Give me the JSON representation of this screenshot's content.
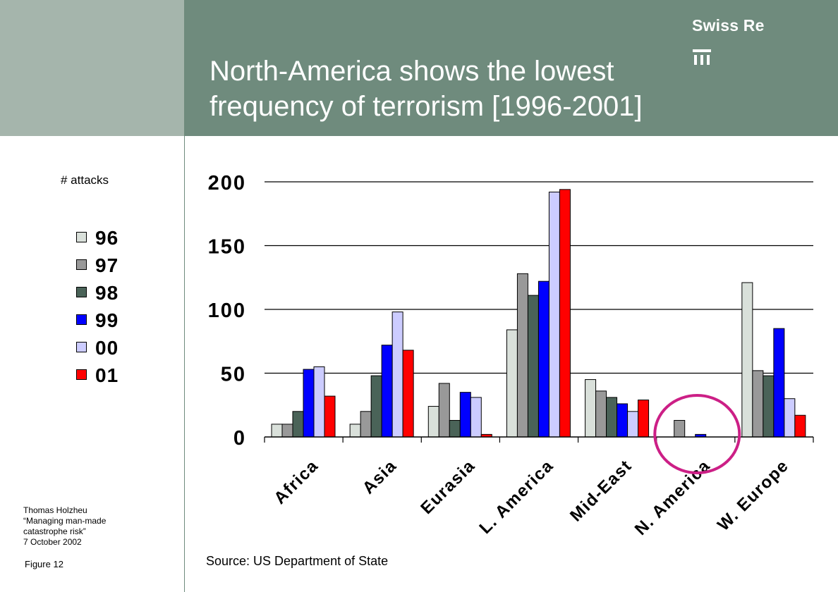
{
  "header": {
    "title_line1": "North-America shows the lowest",
    "title_line2": "frequency of terrorism [1996-2001]",
    "brand": "Swiss Re"
  },
  "left_note": {
    "line1": "Thomas Holzheu",
    "line2": "“Managing man-made",
    "line3": "catastrophe risk”",
    "line4": "7 October 2002"
  },
  "figure_label": "Figure 12",
  "source": "Source: US Department of State",
  "chart_data": {
    "type": "bar",
    "ylabel": "# attacks",
    "ylim": [
      0,
      200
    ],
    "yticks": [
      0,
      50,
      100,
      150,
      200
    ],
    "grid": true,
    "legend_placement": "left",
    "categories": [
      "Africa",
      "Asia",
      "Eurasia",
      "L. America",
      "Mid-East",
      "N. America",
      "W. Europe"
    ],
    "series": [
      {
        "name": "96",
        "color": "#d9e0da",
        "values": [
          10,
          10,
          24,
          84,
          45,
          0,
          121
        ]
      },
      {
        "name": "97",
        "color": "#999999",
        "values": [
          10,
          20,
          42,
          128,
          36,
          13,
          52
        ]
      },
      {
        "name": "98",
        "color": "#4a6358",
        "values": [
          20,
          48,
          13,
          111,
          31,
          0,
          48
        ]
      },
      {
        "name": "99",
        "color": "#0000ff",
        "values": [
          53,
          72,
          35,
          122,
          26,
          2,
          85
        ]
      },
      {
        "name": "00",
        "color": "#ccccff",
        "values": [
          55,
          98,
          31,
          192,
          20,
          0,
          30
        ]
      },
      {
        "name": "01",
        "color": "#ff0000",
        "values": [
          32,
          68,
          2,
          194,
          29,
          0,
          17
        ]
      }
    ],
    "highlight": {
      "category": "N. America",
      "color": "#cc1f86"
    }
  }
}
